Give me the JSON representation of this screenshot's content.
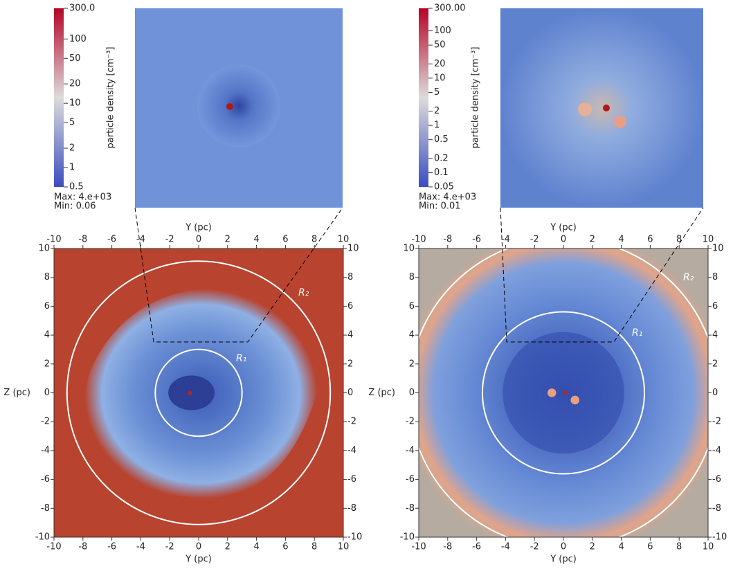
{
  "panels": [
    {
      "colorbar": {
        "label": "particle density [cm⁻³]",
        "lim": [
          0.5,
          300
        ],
        "log": true,
        "ticks": [
          {
            "value": 300,
            "label": "300.0"
          },
          100,
          50,
          20,
          10,
          5,
          2,
          1,
          0.5
        ]
      },
      "max": "Max: 4.e+03",
      "min": "Min: 0.06",
      "inset_x_label": "Y (pc)",
      "x_label": "Y (pc)",
      "y_label": "Z (pc)",
      "xlim": [
        -10,
        10
      ],
      "ylim": [
        -10,
        10
      ],
      "xticks": [
        -10,
        -8,
        -6,
        -4,
        -2,
        0,
        2,
        4,
        6,
        8,
        10
      ],
      "yticks": [
        -10,
        -8,
        -6,
        -4,
        -2,
        0,
        2,
        4,
        6,
        8,
        10
      ],
      "r1_label": "R₁",
      "r2_label": "R₂"
    },
    {
      "colorbar": {
        "label": "particle density [cm⁻³]",
        "lim": [
          0.05,
          300
        ],
        "log": true,
        "ticks": [
          {
            "value": 300,
            "label": "300.00"
          },
          100,
          50,
          20,
          10,
          5,
          2,
          1,
          0.5,
          0.2,
          0.1,
          0.05
        ]
      },
      "max": "Max: 4.e+03",
      "min": "Min: 0.01",
      "inset_x_label": "Y (pc)",
      "x_label": "Y (pc)",
      "y_label": "Z (pc)",
      "xlim": [
        -10,
        10
      ],
      "ylim": [
        -10,
        10
      ],
      "xticks": [
        -10,
        -8,
        -6,
        -4,
        -2,
        0,
        2,
        4,
        6,
        8,
        10
      ],
      "yticks": [
        -10,
        -8,
        -6,
        -4,
        -2,
        0,
        2,
        4,
        6,
        8,
        10
      ],
      "r1_label": "R₁",
      "r2_label": "R₂"
    }
  ]
}
